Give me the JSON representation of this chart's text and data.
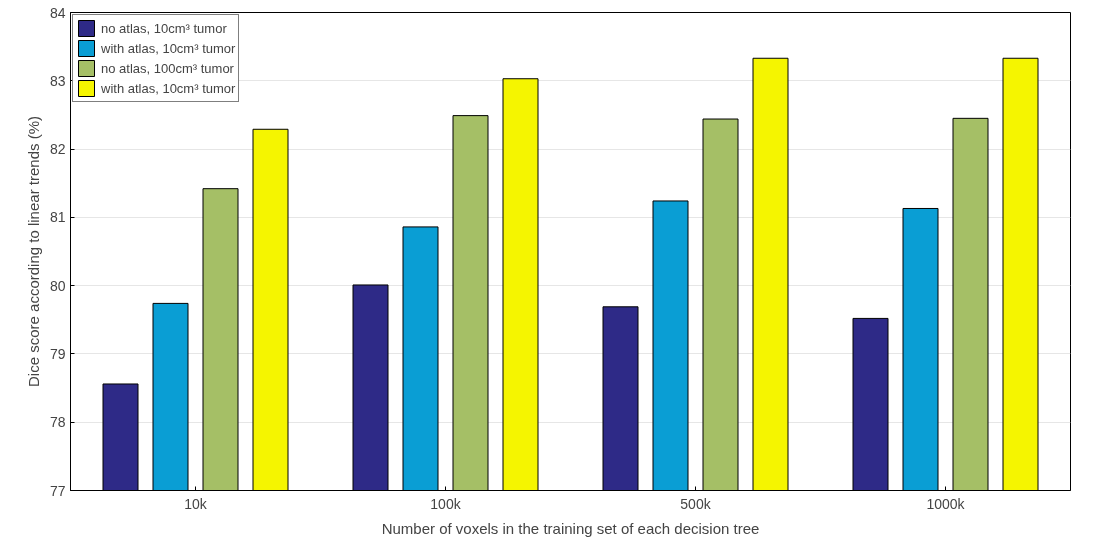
{
  "chart_data": {
    "type": "bar",
    "xlabel": "Number of voxels in the training set of each decision tree",
    "ylabel": "Dice score according to linear trends (%)",
    "categories": [
      "10k",
      "100k",
      "500k",
      "1000k"
    ],
    "series": [
      {
        "name": "no atlas, 10cm³ tumor",
        "color": "#2e2a87",
        "values": [
          78.56,
          80.01,
          79.69,
          79.52
        ]
      },
      {
        "name": "with atlas, 10cm³ tumor",
        "color": "#0a9ed4",
        "values": [
          79.74,
          80.86,
          81.24,
          81.13
        ]
      },
      {
        "name": "no atlas, 100cm³ tumor",
        "color": "#a5bf66",
        "values": [
          81.42,
          82.49,
          82.44,
          82.45
        ]
      },
      {
        "name": "with atlas, 10cm³ tumor",
        "color": "#f5f500",
        "values": [
          82.29,
          83.03,
          83.33,
          83.33
        ]
      }
    ],
    "ylim": [
      77,
      84
    ],
    "yticks": [
      77,
      78,
      79,
      80,
      81,
      82,
      83,
      84
    ],
    "grid": "y",
    "legend": "top left"
  }
}
